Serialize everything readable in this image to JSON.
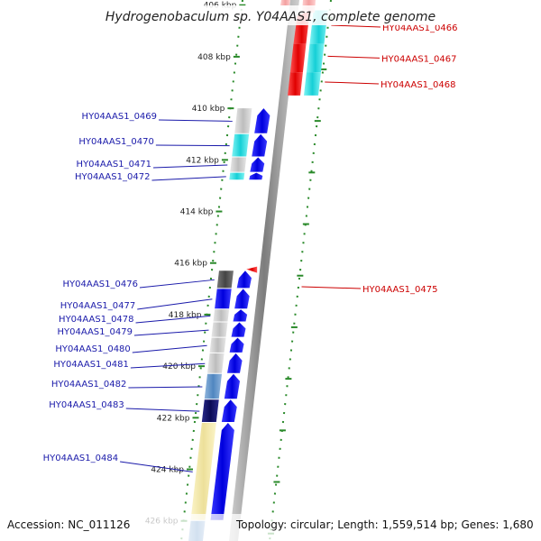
{
  "title": "Hydrogenobaculum sp. Y04AAS1, complete genome",
  "footer": {
    "accession": "Accession: NC_011126",
    "topology": "Topology: circular; Length: 1,559,514 bp; Genes: 1,680"
  },
  "scale": {
    "ticks": [
      {
        "kbp": 406,
        "label": "406 kbp"
      },
      {
        "kbp": 408,
        "label": "408 kbp"
      },
      {
        "kbp": 410,
        "label": "410 kbp"
      },
      {
        "kbp": 412,
        "label": "412 kbp"
      },
      {
        "kbp": 414,
        "label": "414 kbp"
      },
      {
        "kbp": 416,
        "label": "416 kbp"
      },
      {
        "kbp": 418,
        "label": "418 kbp"
      },
      {
        "kbp": 420,
        "label": "420 kbp"
      },
      {
        "kbp": 422,
        "label": "422 kbp"
      },
      {
        "kbp": 424,
        "label": "424 kbp"
      },
      {
        "kbp": 426,
        "label": "426 kbp"
      }
    ]
  },
  "colors": {
    "reverse_label": "#cc0000",
    "forward_label": "#1a1aaa",
    "dots": "#2a8a2a",
    "backbone": "#8a8a8a"
  },
  "genes_reverse": [
    {
      "id": "HY04AAS1_0466",
      "start": 406.2,
      "end": 407.5
    },
    {
      "id": "HY04AAS1_0467",
      "start": 407.5,
      "end": 408.6
    },
    {
      "id": "HY04AAS1_0468",
      "start": 408.6,
      "end": 409.5
    },
    {
      "id": "HY04AAS1_0475",
      "start": 416.1,
      "end": 416.3
    }
  ],
  "genes_forward": [
    {
      "id": "HY04AAS1_0469",
      "start": 410.0,
      "end": 411.0
    },
    {
      "id": "HY04AAS1_0470",
      "start": 411.0,
      "end": 411.9
    },
    {
      "id": "HY04AAS1_0471",
      "start": 411.9,
      "end": 412.5
    },
    {
      "id": "HY04AAS1_0472",
      "start": 412.5,
      "end": 412.8
    },
    {
      "id": "HY04AAS1_0476",
      "start": 416.3,
      "end": 417.0
    },
    {
      "id": "HY04AAS1_0477",
      "start": 417.0,
      "end": 417.8
    },
    {
      "id": "HY04AAS1_0478",
      "start": 417.8,
      "end": 418.3
    },
    {
      "id": "HY04AAS1_0479",
      "start": 418.3,
      "end": 418.9
    },
    {
      "id": "HY04AAS1_0480",
      "start": 418.9,
      "end": 419.5
    },
    {
      "id": "HY04AAS1_0481",
      "start": 419.5,
      "end": 420.3
    },
    {
      "id": "HY04AAS1_0482",
      "start": 420.3,
      "end": 421.3
    },
    {
      "id": "HY04AAS1_0483",
      "start": 421.3,
      "end": 422.2
    },
    {
      "id": "HY04AAS1_0484",
      "start": 422.2,
      "end": 426.0
    }
  ]
}
